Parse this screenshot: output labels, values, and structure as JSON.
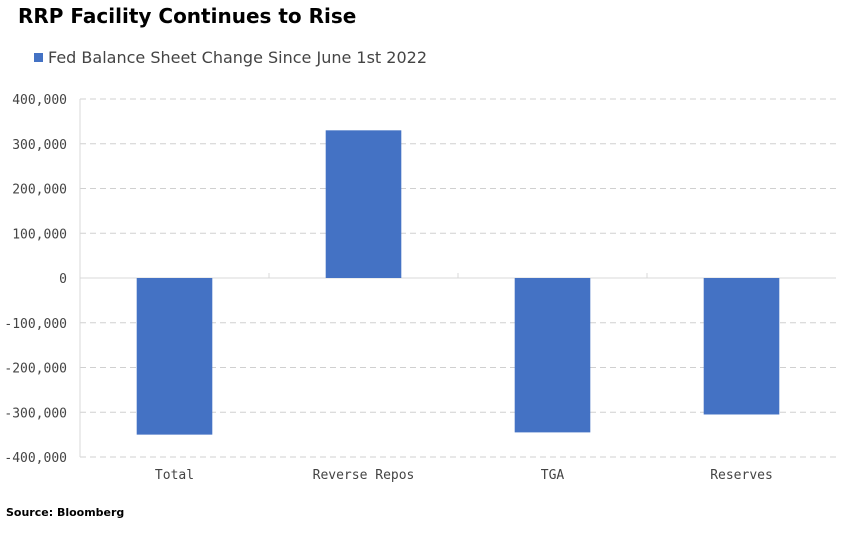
{
  "chart_data": {
    "type": "bar",
    "title": "RRP Facility Continues to Rise",
    "categories": [
      "Total",
      "Reverse Repos",
      "TGA",
      "Reserves"
    ],
    "series": [
      {
        "name": "Fed Balance Sheet Change Since June 1st 2022",
        "values": [
          -350000,
          330000,
          -345000,
          -305000
        ],
        "color": "#4472C4"
      }
    ],
    "ylim": [
      -400000,
      400000
    ],
    "yticks": [
      400000,
      300000,
      200000,
      100000,
      0,
      -100000,
      -200000,
      -300000,
      -400000
    ],
    "ytick_labels": [
      "400,000",
      "300,000",
      "200,000",
      "100,000",
      "0",
      "-100,000",
      "-200,000",
      "-300,000",
      "-400,000"
    ],
    "grid": true,
    "legend_position": "top-left"
  },
  "source": "Source: Bloomberg"
}
